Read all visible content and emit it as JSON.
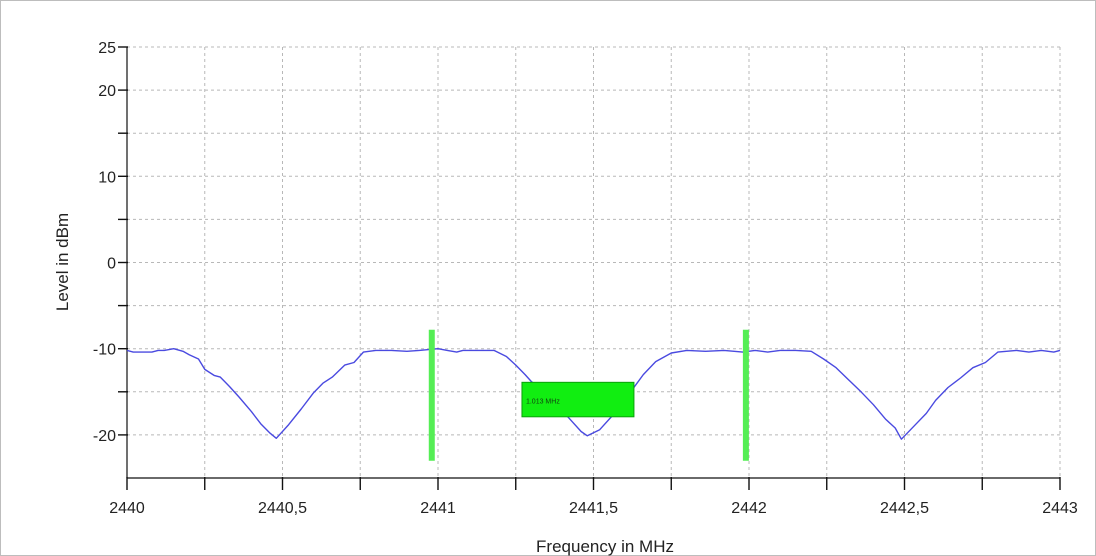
{
  "chart_data": {
    "type": "line",
    "title": "",
    "xlabel": "Frequency in MHz",
    "ylabel": "Level in dBm",
    "xlim": [
      2440,
      2443
    ],
    "ylim": [
      -25,
      25
    ],
    "grid": true,
    "x_ticks": [
      2440,
      2440.5,
      2441,
      2441.5,
      2442,
      2442.5,
      2443
    ],
    "x_tick_labels": [
      "2440",
      "2440,5",
      "2441",
      "2441,5",
      "2442",
      "2442,5",
      "2443"
    ],
    "y_ticks": [
      -20,
      -10,
      0,
      10,
      20,
      25
    ],
    "y_tick_labels": [
      "-20",
      "-10",
      "0",
      "10",
      "20",
      "25"
    ],
    "series": [
      {
        "color": "#4a4ae0",
        "x": [
          2440.0,
          2440.02,
          2440.05,
          2440.08,
          2440.1,
          2440.12,
          2440.15,
          2440.18,
          2440.2,
          2440.23,
          2440.25,
          2440.28,
          2440.3,
          2440.33,
          2440.36,
          2440.4,
          2440.43,
          2440.46,
          2440.48,
          2440.52,
          2440.56,
          2440.6,
          2440.63,
          2440.66,
          2440.7,
          2440.73,
          2440.76,
          2440.8,
          2440.85,
          2440.9,
          2440.94,
          2441.0,
          2441.03,
          2441.06,
          2441.08,
          2441.12,
          2441.18,
          2441.22,
          2441.25,
          2441.28,
          2441.3,
          2441.34,
          2441.38,
          2441.42,
          2441.46,
          2441.48,
          2441.52,
          2441.56,
          2441.6,
          2441.63,
          2441.66,
          2441.7,
          2441.75,
          2441.8,
          2441.86,
          2441.92,
          2441.98,
          2442.02,
          2442.06,
          2442.1,
          2442.15,
          2442.2,
          2442.24,
          2442.28,
          2442.32,
          2442.36,
          2442.4,
          2442.44,
          2442.47,
          2442.49,
          2442.53,
          2442.57,
          2442.6,
          2442.64,
          2442.68,
          2442.72,
          2442.76,
          2442.8,
          2442.86,
          2442.9,
          2442.94,
          2442.98,
          2443.0
        ],
        "y": [
          -10.2,
          -10.4,
          -10.4,
          -10.4,
          -10.2,
          -10.2,
          -10.0,
          -10.3,
          -10.7,
          -11.2,
          -12.4,
          -13.1,
          -13.3,
          -14.4,
          -15.6,
          -17.3,
          -18.7,
          -19.8,
          -20.4,
          -18.8,
          -17.0,
          -15.1,
          -14.0,
          -13.3,
          -11.9,
          -11.6,
          -10.4,
          -10.2,
          -10.2,
          -10.3,
          -10.2,
          -10.0,
          -10.2,
          -10.4,
          -10.2,
          -10.2,
          -10.2,
          -10.9,
          -11.9,
          -13.0,
          -13.8,
          -14.9,
          -16.5,
          -18.0,
          -19.6,
          -20.1,
          -19.4,
          -17.8,
          -15.9,
          -14.5,
          -13.0,
          -11.5,
          -10.5,
          -10.2,
          -10.3,
          -10.2,
          -10.4,
          -10.2,
          -10.4,
          -10.2,
          -10.2,
          -10.3,
          -11.2,
          -12.2,
          -13.6,
          -15.0,
          -16.5,
          -18.2,
          -19.2,
          -20.5,
          -19.0,
          -17.5,
          -16.0,
          -14.5,
          -13.4,
          -12.2,
          -11.6,
          -10.4,
          -10.2,
          -10.4,
          -10.2,
          -10.4,
          -10.2
        ]
      }
    ],
    "markers": [
      {
        "x": 2440.98,
        "y_top": -7.8,
        "y_bottom": -23.0,
        "color": "#55ee55"
      },
      {
        "x": 2441.99,
        "y_top": -7.8,
        "y_bottom": -23.0,
        "color": "#55ee55"
      }
    ],
    "annotation": {
      "text": "1.013 MHz",
      "x_start": 2441.27,
      "x_end": 2441.63,
      "y_top": -13.9,
      "y_bottom": -17.9,
      "fill": "#11ee11",
      "border": "#0aa00a"
    }
  }
}
